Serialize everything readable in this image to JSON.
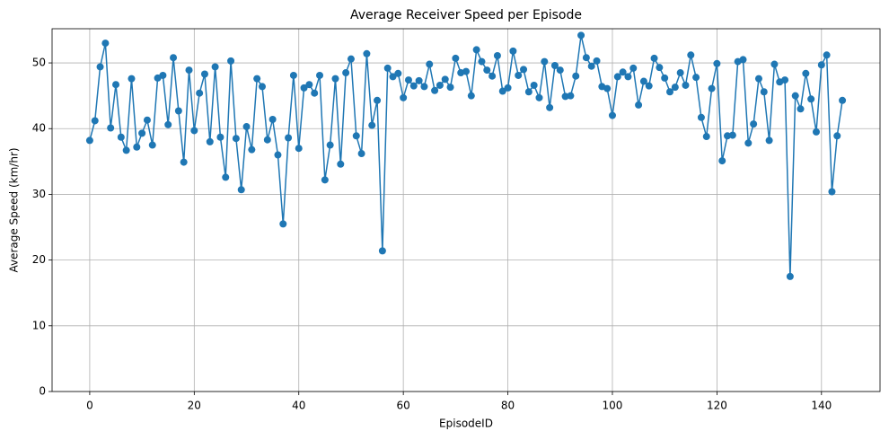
{
  "chart_data": {
    "type": "line",
    "title": "Average Receiver Speed per Episode",
    "xlabel": "EpisodeID",
    "ylabel": "Average Speed (km/hr)",
    "x": [
      0,
      1,
      2,
      3,
      4,
      5,
      6,
      7,
      8,
      9,
      10,
      11,
      12,
      13,
      14,
      15,
      16,
      17,
      18,
      19,
      20,
      21,
      22,
      23,
      24,
      25,
      26,
      27,
      28,
      29,
      30,
      31,
      32,
      33,
      34,
      35,
      36,
      37,
      38,
      39,
      40,
      41,
      42,
      43,
      44,
      45,
      46,
      47,
      48,
      49,
      50,
      51,
      52,
      53,
      54,
      55,
      56,
      57,
      58,
      59,
      60,
      61,
      62,
      63,
      64,
      65,
      66,
      67,
      68,
      69,
      70,
      71,
      72,
      73,
      74,
      75,
      76,
      77,
      78,
      79,
      80,
      81,
      82,
      83,
      84,
      85,
      86,
      87,
      88,
      89,
      90,
      91,
      92,
      93,
      94,
      95,
      96,
      97,
      98,
      99,
      100,
      101,
      102,
      103,
      104,
      105,
      106,
      107,
      108,
      109,
      110,
      111,
      112,
      113,
      114,
      115,
      116,
      117,
      118,
      119,
      120,
      121,
      122,
      123,
      124,
      125,
      126,
      127,
      128,
      129,
      130,
      131,
      132,
      133,
      134,
      135,
      136,
      137,
      138,
      139,
      140,
      141,
      142,
      143,
      144
    ],
    "series": [
      {
        "name": "Average Speed",
        "color": "#1f77b4",
        "values": [
          38.2,
          41.2,
          49.4,
          53,
          40.1,
          46.7,
          38.7,
          36.7,
          47.6,
          37.2,
          39.3,
          41.3,
          37.5,
          47.7,
          48.1,
          40.6,
          50.8,
          42.7,
          34.9,
          48.9,
          39.7,
          45.4,
          48.3,
          38,
          49.4,
          38.7,
          32.6,
          50.3,
          38.5,
          30.7,
          40.3,
          36.8,
          47.6,
          46.4,
          38.3,
          41.4,
          36,
          25.5,
          38.6,
          48.1,
          37,
          46.2,
          46.7,
          45.4,
          48.1,
          32.2,
          37.5,
          47.6,
          34.6,
          48.5,
          50.6,
          38.9,
          36.2,
          51.4,
          40.5,
          44.3,
          21.4,
          49.2,
          47.9,
          48.4,
          44.7,
          47.4,
          46.5,
          47.3,
          46.4,
          49.8,
          45.8,
          46.6,
          47.5,
          46.3,
          50.7,
          48.5,
          48.7,
          45,
          52,
          50.2,
          48.9,
          48,
          51.1,
          45.7,
          46.2,
          51.8,
          48.1,
          49,
          45.6,
          46.6,
          44.7,
          50.2,
          43.2,
          49.6,
          48.9,
          44.9,
          45,
          48,
          54.2,
          50.8,
          49.5,
          50.3,
          46.4,
          46.1,
          42,
          47.9,
          48.6,
          47.9,
          49.2,
          43.6,
          47.2,
          46.5,
          50.7,
          49.3,
          47.7,
          45.6,
          46.3,
          48.5,
          46.6,
          51.2,
          47.8,
          41.7,
          38.8,
          46.1,
          49.9,
          35.1,
          38.9,
          39,
          50.2,
          50.5,
          37.8,
          40.7,
          47.6,
          45.6,
          38.2,
          49.8,
          47.1,
          47.4,
          17.5,
          45,
          43,
          48.4,
          44.5,
          39.5,
          49.7,
          51.2,
          30.4,
          38.9,
          44.3
        ]
      }
    ],
    "xlim": [
      -7.2,
      151.2
    ],
    "ylim": [
      0,
      55.2
    ],
    "xticks": [
      0,
      20,
      40,
      60,
      80,
      100,
      120,
      140
    ],
    "yticks": [
      0,
      10,
      20,
      30,
      40,
      50
    ],
    "grid": true
  }
}
